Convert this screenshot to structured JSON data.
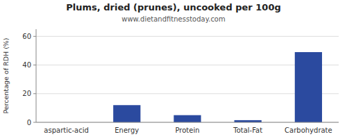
{
  "chart_data": {
    "type": "bar",
    "title": "Plums, dried (prunes), uncooked per 100g",
    "subtitle": "www.dietandfitnesstoday.com",
    "categories": [
      "aspartic-acid",
      "Energy",
      "Protein",
      "Total-Fat",
      "Carbohydrate"
    ],
    "values": [
      0.0,
      12.0,
      5.0,
      1.5,
      49.0
    ],
    "color": "#2b4a9f",
    "ylabel": "Percentage of RDH (%)",
    "ylim": [
      0,
      65
    ],
    "yticks": [
      0,
      20,
      40,
      60
    ],
    "grid": true
  }
}
